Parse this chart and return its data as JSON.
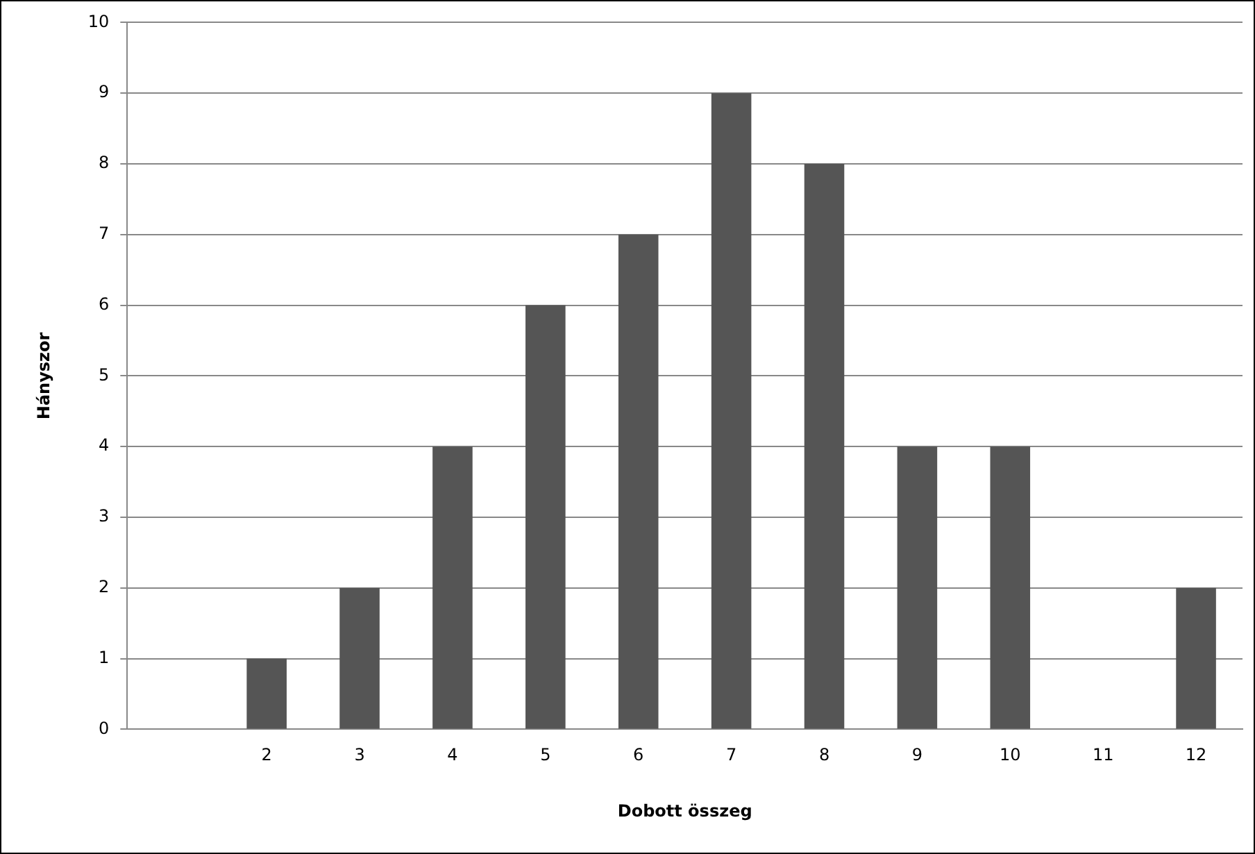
{
  "chart_data": {
    "type": "bar",
    "xlabel": "Dobott összeg",
    "ylabel": "Hányszor",
    "categories": [
      null,
      "2",
      "3",
      "4",
      "5",
      "6",
      "7",
      "8",
      "9",
      "10",
      "11",
      "12"
    ],
    "values": [
      null,
      1,
      2,
      4,
      6,
      7,
      9,
      8,
      4,
      4,
      0,
      2
    ],
    "color": "#555555",
    "ylim": [
      0,
      10
    ],
    "yticks": [
      0,
      1,
      2,
      3,
      4,
      5,
      6,
      7,
      8,
      9,
      10
    ],
    "grid": "y",
    "legend": false
  }
}
